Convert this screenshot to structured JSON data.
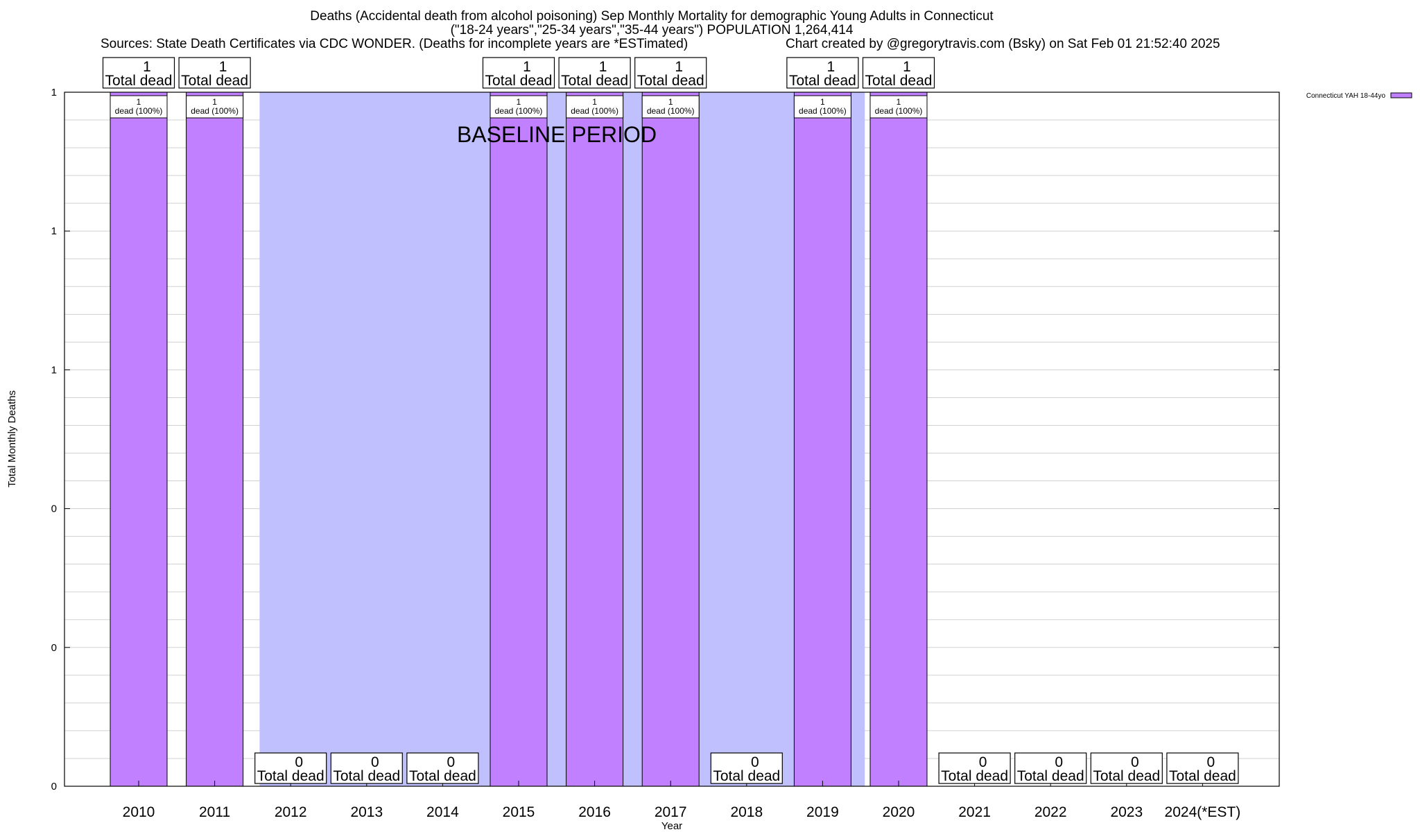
{
  "title": {
    "line1": "Deaths (Accidental death from alcohol poisoning) Sep Monthly Mortality for demographic Young Adults in Connecticut",
    "line2": "(\"18-24 years\",\"25-34 years\",\"35-44 years\") POPULATION 1,264,414",
    "sources": "Sources: State Death Certificates via CDC WONDER. (Deaths for incomplete years are *ESTimated)",
    "credit": "Chart created by @gregorytravis.com (Bsky) on Sat Feb 01 21:52:40 2025"
  },
  "chart_data": {
    "type": "bar",
    "xlabel": "Year",
    "ylabel": "Total Monthly Deaths",
    "ylim": [
      0,
      1
    ],
    "y_tick_labels": [
      "0",
      "0",
      "0",
      "1",
      "1",
      "1"
    ],
    "categories": [
      "2010",
      "2011",
      "2012",
      "2013",
      "2014",
      "2015",
      "2016",
      "2017",
      "2018",
      "2019",
      "2020",
      "2021",
      "2022",
      "2023",
      "2024(*EST)"
    ],
    "series": [
      {
        "name": "Connecticut YAH 18-44yo",
        "values": [
          1,
          1,
          0,
          0,
          0,
          1,
          1,
          1,
          0,
          1,
          1,
          0,
          0,
          0,
          0
        ]
      }
    ],
    "top_label_suffix": "Total dead",
    "inner_labels": [
      "1\ndead (100%)",
      "1\ndead (100%)",
      "",
      "",
      "",
      "1\ndead (100%)",
      "1\ndead (100%)",
      "1\ndead (100%)",
      "",
      "1\ndead (100%)",
      "1\ndead (100%)",
      "",
      "",
      "",
      ""
    ],
    "baseline": {
      "label": "BASELINE PERIOD",
      "start": "2012",
      "end": "2019"
    },
    "grid": true,
    "legend_position": "top-right",
    "colors": {
      "bar": "#c080ff",
      "baseline": "#c0c0ff",
      "legend": "#c080ff"
    }
  }
}
